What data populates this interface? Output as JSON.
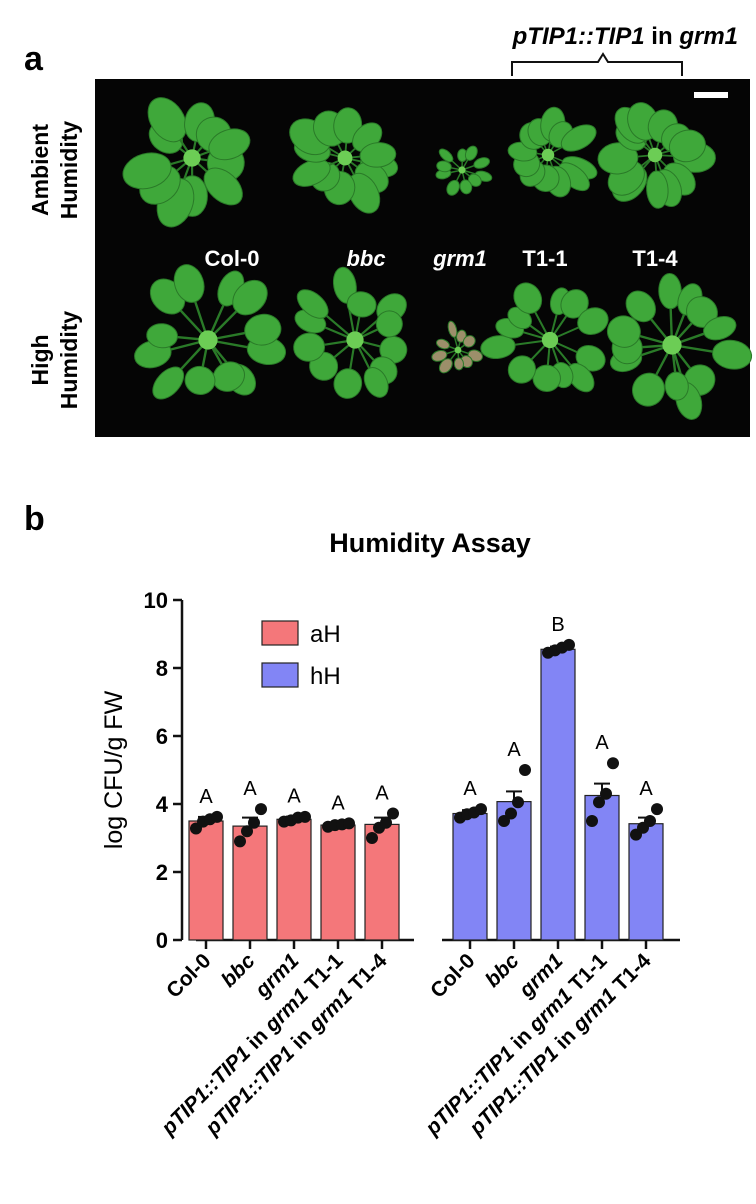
{
  "panel_a": {
    "label": "a",
    "construct_prefix": "pTIP1::TIP1",
    "construct_in": " in ",
    "construct_host": "grm1",
    "row_labels": [
      {
        "line1": "Ambient",
        "line2": "Humidity"
      },
      {
        "line1": "High",
        "line2": "Humidity"
      }
    ],
    "genotypes": [
      {
        "label": "Col-0",
        "italic": false
      },
      {
        "label": "bbc",
        "italic": true
      },
      {
        "label": "grm1",
        "italic": true
      },
      {
        "label": "T1-1",
        "italic": false
      },
      {
        "label": "T1-4",
        "italic": false
      }
    ],
    "colors": {
      "background": "#050505",
      "plant": "#3fa83a",
      "plant_dark": "#2a7a28",
      "plant_light": "#6ccd55",
      "grm1_high": "#9c8f6a"
    }
  },
  "panel_b": {
    "label": "b",
    "chart_data": {
      "type": "bar",
      "title": "Humidity Assay",
      "ylabel": "log CFU/g FW",
      "ylim": [
        0,
        10
      ],
      "yticks": [
        0,
        2,
        4,
        6,
        8,
        10
      ],
      "legend": {
        "placement": "top-left",
        "entries": [
          {
            "name": "aH",
            "color": "#f4777a"
          },
          {
            "name": "hH",
            "color": "#8285f5"
          }
        ]
      },
      "groups": [
        {
          "name": "aH",
          "color": "#f4777a",
          "bars": [
            {
              "category": [
                "",
                "Col-0",
                ""
              ],
              "value": 3.5,
              "sem": 0.12,
              "letter": "A",
              "points": [
                3.28,
                3.48,
                3.55,
                3.62
              ]
            },
            {
              "category": [
                "",
                "bbc",
                ""
              ],
              "value": 3.35,
              "sem": 0.25,
              "letter": "A",
              "points": [
                2.9,
                3.2,
                3.45,
                3.85
              ]
            },
            {
              "category": [
                "",
                "grm1",
                ""
              ],
              "value": 3.55,
              "sem": 0.08,
              "letter": "A",
              "points": [
                3.48,
                3.52,
                3.6,
                3.62
              ]
            },
            {
              "category": [
                "pTIP1::TIP1",
                " in ",
                "grm1",
                " T1-1"
              ],
              "value": 3.38,
              "sem": 0.05,
              "letter": "A",
              "points": [
                3.33,
                3.38,
                3.4,
                3.43
              ]
            },
            {
              "category": [
                "pTIP1::TIP1",
                " in ",
                "grm1",
                " T1-4"
              ],
              "value": 3.4,
              "sem": 0.2,
              "letter": "A",
              "points": [
                3.0,
                3.3,
                3.45,
                3.72
              ]
            }
          ]
        },
        {
          "name": "hH",
          "color": "#8285f5",
          "bars": [
            {
              "category": [
                "",
                "Col-0",
                ""
              ],
              "value": 3.72,
              "sem": 0.1,
              "letter": "A",
              "points": [
                3.6,
                3.7,
                3.75,
                3.85
              ]
            },
            {
              "category": [
                "",
                "bbc",
                ""
              ],
              "value": 4.07,
              "sem": 0.3,
              "letter": "A",
              "points": [
                3.5,
                3.72,
                4.05,
                5.0
              ]
            },
            {
              "category": [
                "",
                "grm1",
                ""
              ],
              "value": 8.55,
              "sem": 0.08,
              "letter": "B",
              "points": [
                8.45,
                8.52,
                8.6,
                8.68
              ]
            },
            {
              "category": [
                "pTIP1::TIP1",
                " in ",
                "grm1",
                " T1-1"
              ],
              "value": 4.25,
              "sem": 0.35,
              "letter": "A",
              "points": [
                3.5,
                4.05,
                4.3,
                5.2
              ]
            },
            {
              "category": [
                "pTIP1::TIP1",
                " in ",
                "grm1",
                " T1-4"
              ],
              "value": 3.42,
              "sem": 0.18,
              "letter": "A",
              "points": [
                3.1,
                3.3,
                3.5,
                3.85
              ]
            }
          ]
        }
      ],
      "colors": {
        "axis": "#111111",
        "point": "#111111"
      }
    }
  }
}
